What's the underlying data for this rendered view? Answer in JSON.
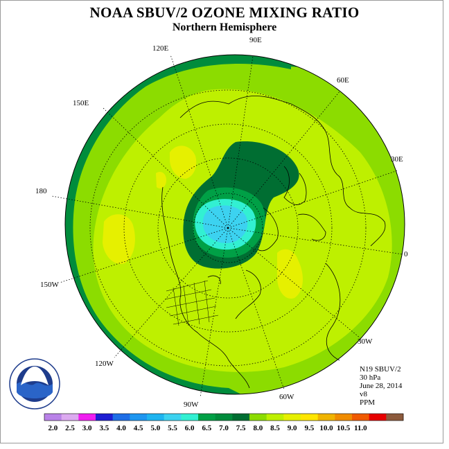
{
  "title": "NOAA SBUV/2 OZONE MIXING RATIO",
  "subtitle": "Northern Hemisphere",
  "longitude_labels": [
    "90E",
    "60E",
    "30E",
    "0",
    "30W",
    "60W",
    "90W",
    "120W",
    "150W",
    "180",
    "150E",
    "120E"
  ],
  "info": {
    "instrument": "N19 SBUV/2",
    "level": "30 hPa",
    "date": "June 28, 2014",
    "version": "v8",
    "units": "PPM"
  },
  "logo": {
    "text": "NOAA",
    "ring_text": "NATIONAL OCEANIC AND ATMOSPHERIC ADMINISTRATION · U.S. DEPARTMENT OF COMMERCE"
  },
  "colorbar": {
    "labels": [
      "2.0",
      "2.5",
      "3.0",
      "3.5",
      "4.0",
      "4.5",
      "5.0",
      "5.5",
      "6.0",
      "6.5",
      "7.0",
      "7.5",
      "8.0",
      "8.5",
      "9.0",
      "9.5",
      "10.0",
      "10.5",
      "11.0"
    ],
    "colors": [
      "#b982e8",
      "#dcaaf0",
      "#f01ef0",
      "#1e1ed2",
      "#1e6ee6",
      "#1e96f0",
      "#1eb4f0",
      "#3cd2f0",
      "#32f0d2",
      "#00a046",
      "#008c3c",
      "#006e32",
      "#8cdc00",
      "#bef000",
      "#e6f000",
      "#ffe600",
      "#f0b400",
      "#f08c00",
      "#f05a00",
      "#e60000",
      "#8c5a3c"
    ]
  },
  "colors": {
    "outer_band": "#008c3c",
    "main_field": "#8cdc00",
    "mid_field": "#bef000",
    "high_spot": "#e6f000",
    "low_core": "#3cd2f0",
    "low_edge": "#32f0d2",
    "low_ring": "#006e32"
  }
}
